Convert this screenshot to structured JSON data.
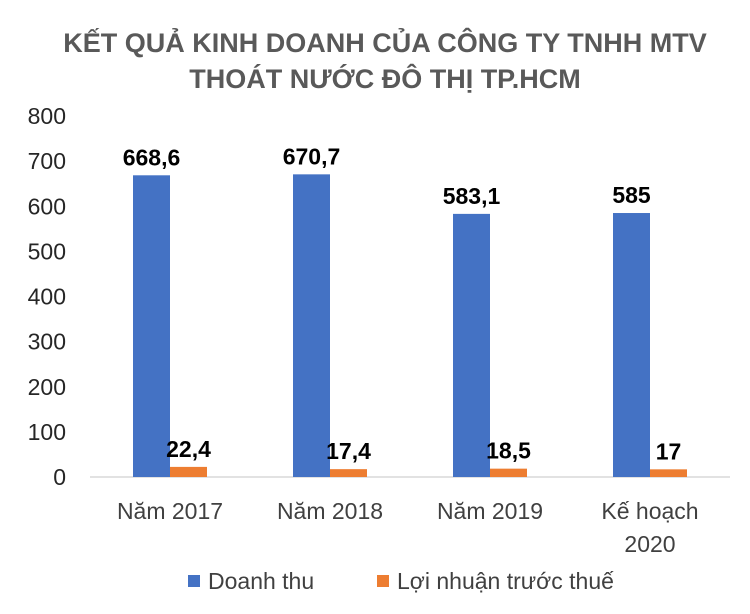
{
  "chart_data": {
    "type": "bar",
    "title_lines": [
      "KẾT QUẢ KINH DOANH CỦA CÔNG TY TNHH MTV",
      "THOÁT NƯỚC ĐÔ THỊ TP.HCM"
    ],
    "categories": [
      [
        "Năm 2017"
      ],
      [
        "Năm 2018"
      ],
      [
        "Năm 2019"
      ],
      [
        "Kế hoạch",
        "2020"
      ]
    ],
    "series": [
      {
        "name": "Doanh thu",
        "color": "#4472C4",
        "values": [
          668.6,
          670.7,
          583.1,
          585
        ],
        "labels": [
          "668,6",
          "670,7",
          "583,1",
          "585"
        ]
      },
      {
        "name": "Lợi nhuận trước thuế",
        "color": "#ED7D31",
        "values": [
          22.4,
          17.4,
          18.5,
          17
        ],
        "labels": [
          "22,4",
          "17,4",
          "18,5",
          "17"
        ]
      }
    ],
    "ylim": [
      0,
      800
    ],
    "yticks": [
      0,
      100,
      200,
      300,
      400,
      500,
      600,
      700,
      800
    ],
    "grid": false,
    "legend_position": "bottom"
  }
}
